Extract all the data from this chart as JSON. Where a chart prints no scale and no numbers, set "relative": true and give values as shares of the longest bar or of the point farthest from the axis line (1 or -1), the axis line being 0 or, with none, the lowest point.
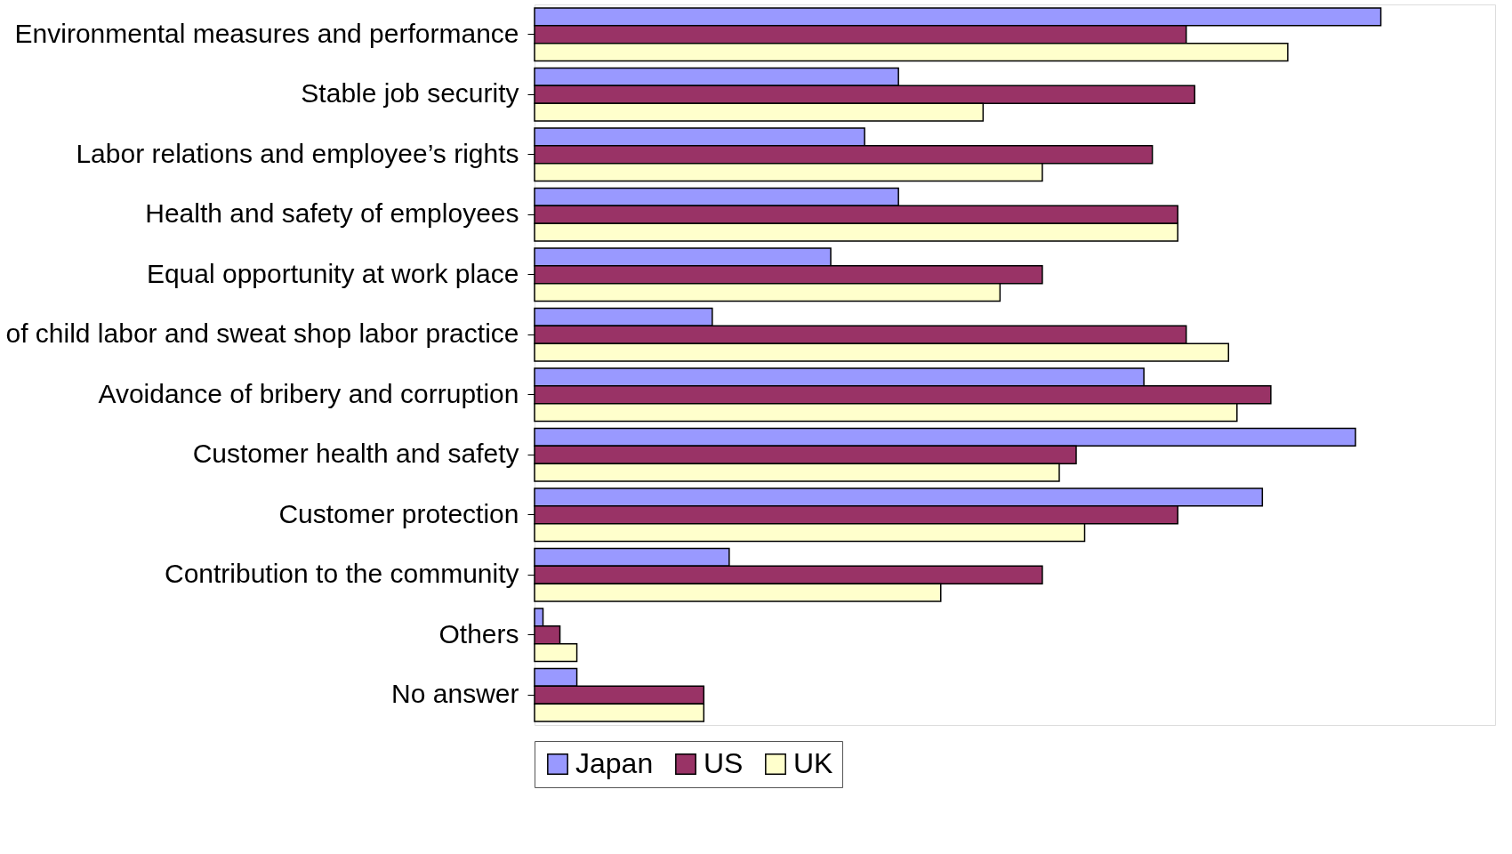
{
  "chart_data": {
    "type": "bar",
    "orientation": "horizontal",
    "relative": true,
    "grid": false,
    "legend": "bottom",
    "categories": [
      "Environmental measures and performance",
      "Stable job security",
      "Labor relations and employee’s rights",
      "Health and safety of employees",
      "Equal opportunity at work place",
      "of child labor and sweat shop labor practice",
      "Avoidance of bribery and corruption",
      "Customer health and safety",
      "Customer protection",
      "Contribution to the community",
      "Others",
      "No answer"
    ],
    "series": [
      {
        "name": "Japan",
        "color": "#9999ff",
        "values": [
          1,
          0.43,
          0.39,
          0.43,
          0.35,
          0.21,
          0.72,
          0.97,
          0.86,
          0.23,
          0.01,
          0.05
        ]
      },
      {
        "name": "US",
        "color": "#993366",
        "values": [
          0.77,
          0.78,
          0.73,
          0.76,
          0.6,
          0.77,
          0.87,
          0.64,
          0.76,
          0.6,
          0.03,
          0.2
        ]
      },
      {
        "name": "UK",
        "color": "#ffffcc",
        "values": [
          0.89,
          0.53,
          0.6,
          0.76,
          0.55,
          0.82,
          0.83,
          0.62,
          0.65,
          0.48,
          0.05,
          0.2
        ]
      }
    ]
  }
}
